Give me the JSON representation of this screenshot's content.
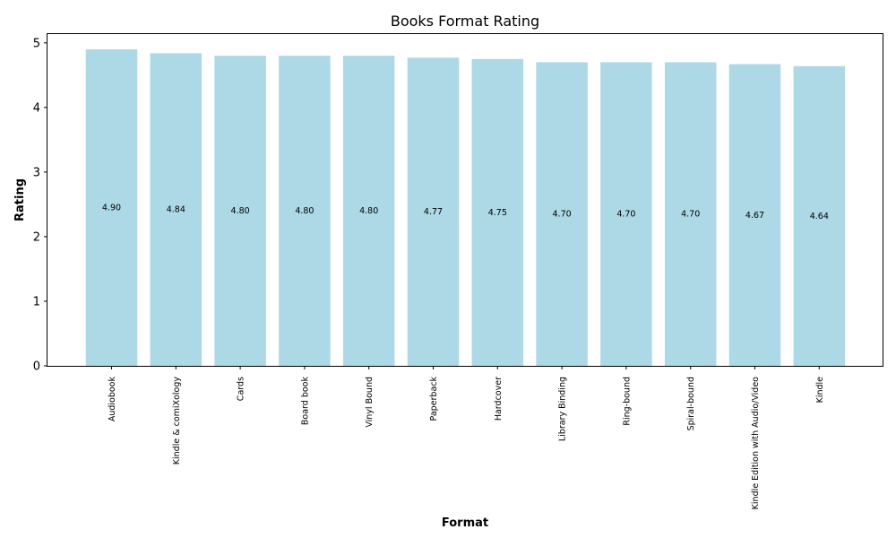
{
  "chart_data": {
    "type": "bar",
    "title": "Books Format Rating",
    "xlabel": "Format",
    "ylabel": "Rating",
    "categories": [
      "Audiobook",
      "Kindle & comiXology",
      "Cards",
      "Board book",
      "Vinyl Bound",
      "Paperback",
      "Hardcover",
      "Library Binding",
      "Ring-bound",
      "Spiral-bound",
      "Kindle Edition with Audio/Video",
      "Kindle"
    ],
    "values": [
      4.9,
      4.84,
      4.8,
      4.8,
      4.8,
      4.77,
      4.75,
      4.7,
      4.7,
      4.7,
      4.67,
      4.64
    ],
    "value_labels": [
      "4.90",
      "4.84",
      "4.80",
      "4.80",
      "4.80",
      "4.77",
      "4.75",
      "4.70",
      "4.70",
      "4.70",
      "4.67",
      "4.64"
    ],
    "ylim": [
      0,
      5.15
    ],
    "yticks": [
      "0",
      "1",
      "2",
      "3",
      "4",
      "5"
    ],
    "bar_color": "#add8e6",
    "grid": false,
    "legend": "none"
  }
}
